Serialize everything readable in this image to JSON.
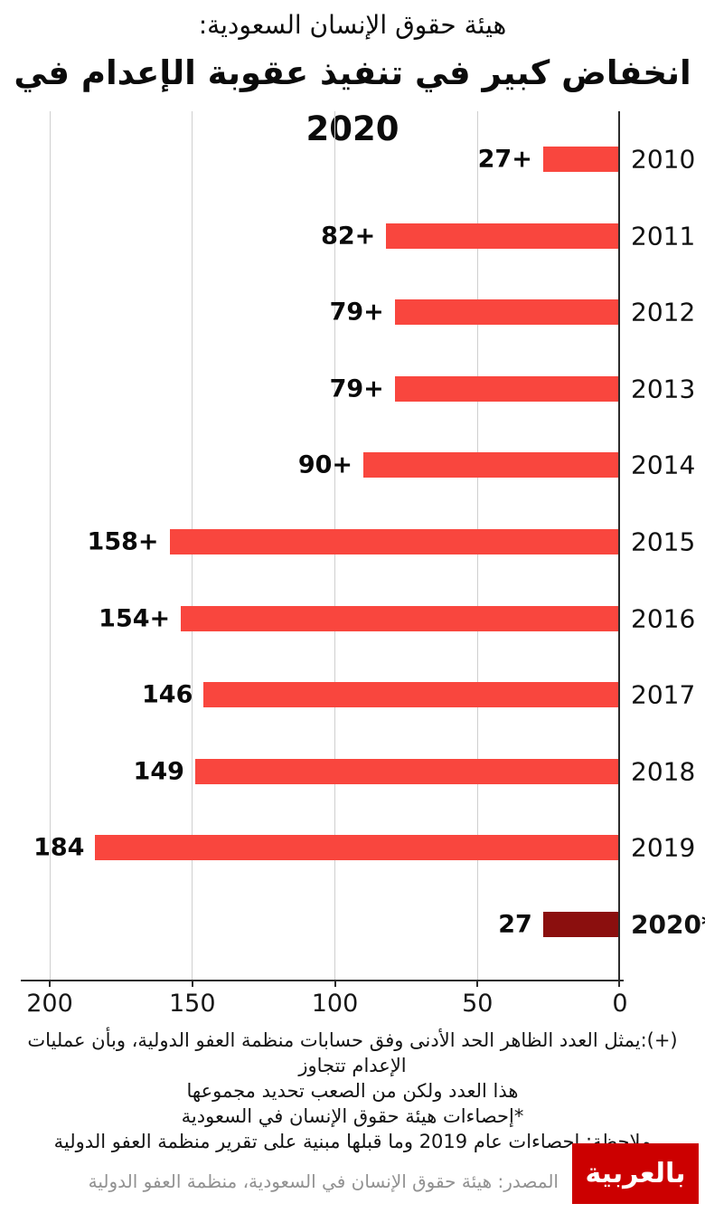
{
  "header": {
    "kicker": "هيئة حقوق الإنسان السعودية:",
    "title": "انخفاض كبير في تنفيذ عقوبة الإعدام في 2020"
  },
  "chart_data": {
    "type": "bar",
    "orientation": "horizontal-rtl",
    "title": "انخفاض كبير في تنفيذ عقوبة الإعدام في 2020",
    "categories": [
      "2010",
      "2011",
      "2012",
      "2013",
      "2014",
      "2015",
      "2016",
      "2017",
      "2018",
      "2019",
      "2020*"
    ],
    "values": [
      27,
      82,
      79,
      79,
      90,
      158,
      154,
      146,
      149,
      184,
      27
    ],
    "rows": [
      {
        "year": "2010",
        "label": "27+",
        "value": 27,
        "highlight": false
      },
      {
        "year": "2011",
        "label": "82+",
        "value": 82,
        "highlight": false
      },
      {
        "year": "2012",
        "label": "79+",
        "value": 79,
        "highlight": false
      },
      {
        "year": "2013",
        "label": "79+",
        "value": 79,
        "highlight": false
      },
      {
        "year": "2014",
        "label": "90+",
        "value": 90,
        "highlight": false
      },
      {
        "year": "2015",
        "label": "158+",
        "value": 158,
        "highlight": false
      },
      {
        "year": "2016",
        "label": "154+",
        "value": 154,
        "highlight": false
      },
      {
        "year": "2017",
        "label": "146",
        "value": 146,
        "highlight": false
      },
      {
        "year": "2018",
        "label": "149",
        "value": 149,
        "highlight": false
      },
      {
        "year": "2019",
        "label": "184",
        "value": 184,
        "highlight": false
      },
      {
        "year": "2020*",
        "label": "27",
        "value": 27,
        "highlight": true
      }
    ],
    "axis": {
      "ticks": [
        200,
        150,
        100,
        50,
        0
      ],
      "max": 200,
      "grid": true,
      "zero_side": "right"
    },
    "colors": {
      "bar": "#F9463E",
      "highlight_bar": "#8B0F0E",
      "gridline": "#CFCFCF",
      "axis": "#2B2B2B"
    }
  },
  "notes": {
    "lines": [
      "(+):يمثل العدد الظاهر الحد الأدنى وفق حسابات منظمة العفو الدولية، وبأن عمليات الإعدام تتجاوز",
      "هذا العدد ولكن من الصعب تحديد مجموعها",
      "*إحصاءات هيئة حقوق الإنسان في السعودية",
      "ملاحظة: إحصاءات عام 2019 وما قبلها مبنية على تقرير منظمة العفو الدولية"
    ]
  },
  "source": {
    "text": "المصدر: هيئة حقوق الإنسان في السعودية، منظمة العفو الدولية"
  },
  "logo": {
    "text": "بالعربية",
    "name": "CNN Arabic",
    "bg": "#CC0000"
  }
}
